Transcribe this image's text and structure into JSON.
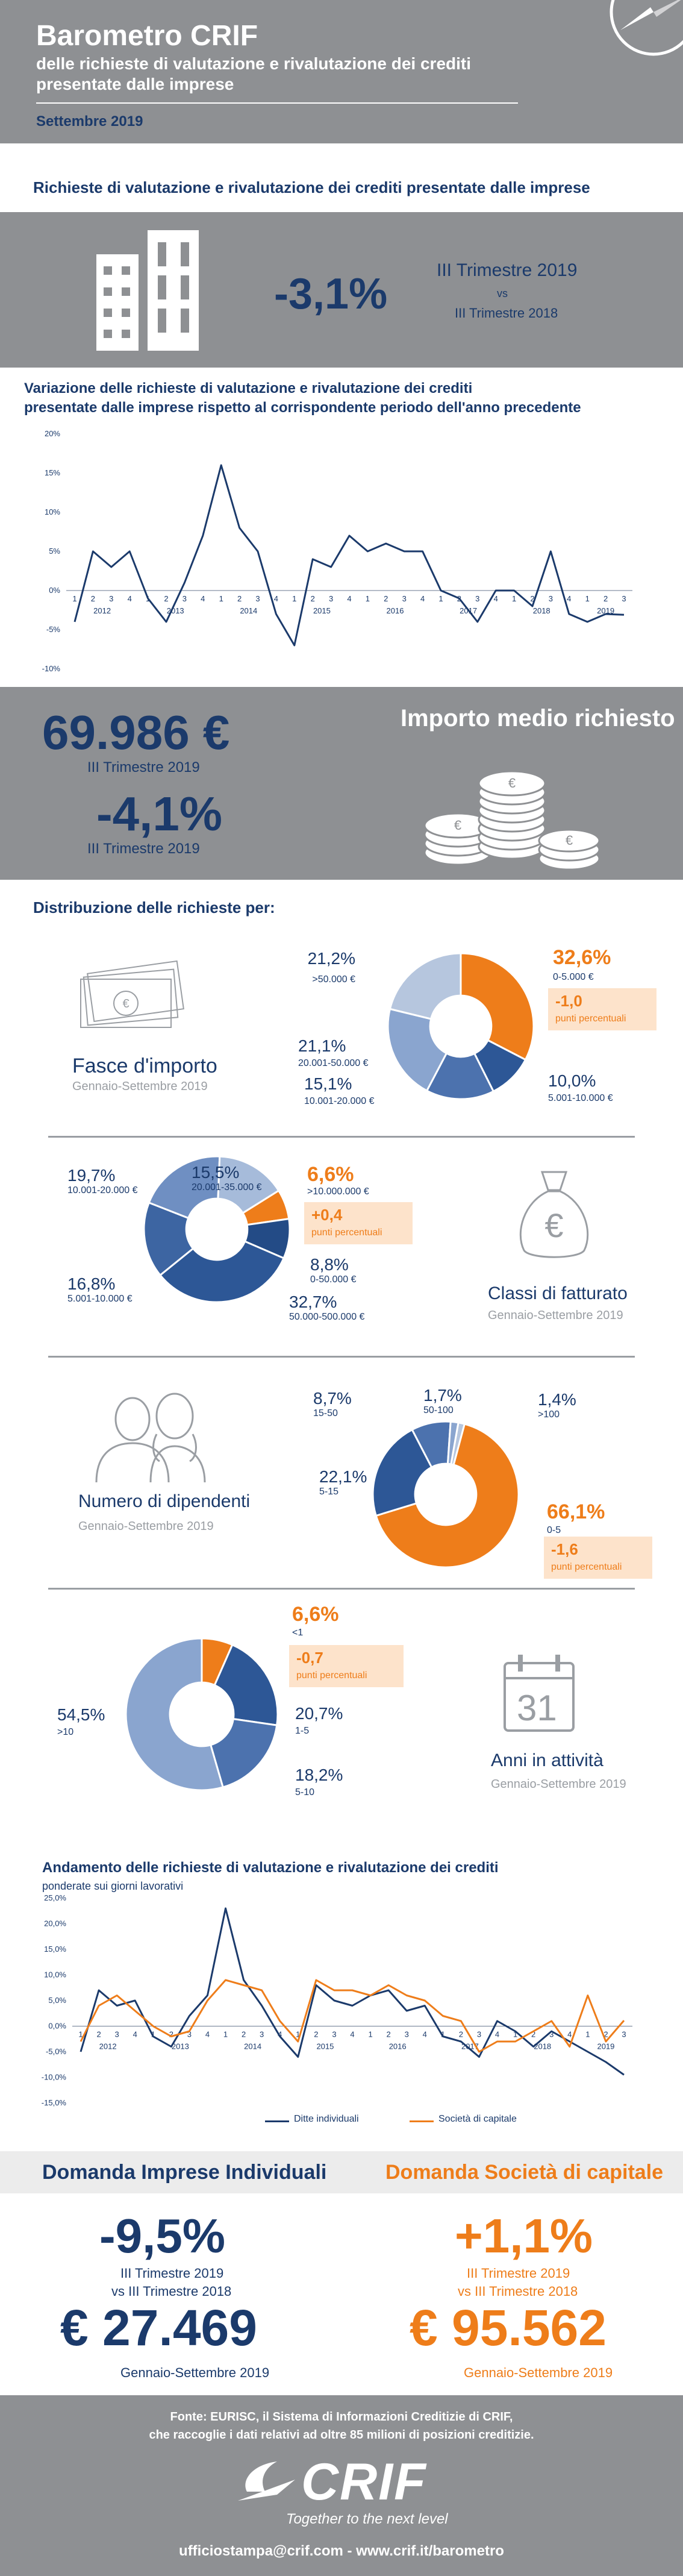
{
  "header": {
    "title": "Barometro CRIF",
    "subtitle_line1": "delle richieste di valutazione e rivalutazione dei crediti",
    "subtitle_line2": "presentate dalle imprese",
    "date": "Settembre 2019"
  },
  "section1": {
    "title": "Richieste di valutazione e rivalutazione dei crediti presentate dalle imprese",
    "value": "-3,1%",
    "period_a": "III Trimestre 2019",
    "vs": "vs",
    "period_b": "III Trimestre 2018"
  },
  "chart1": {
    "title_line1": "Variazione delle richieste di valutazione e rivalutazione dei crediti",
    "title_line2": "presentate dalle imprese rispetto al corrispondente periodo dell'anno precedente"
  },
  "chart_data": [
    {
      "type": "line",
      "title": "Variazione delle richieste di valutazione e rivalutazione dei crediti presentate dalle imprese rispetto al corrispondente periodo dell'anno precedente",
      "x": [
        "1",
        "2",
        "3",
        "4",
        "1",
        "2",
        "3",
        "4",
        "1",
        "2",
        "3",
        "4",
        "1",
        "2",
        "3",
        "4",
        "1",
        "2",
        "3",
        "4",
        "1",
        "2",
        "3",
        "4",
        "1",
        "2",
        "3",
        "4",
        "1",
        "2",
        "3"
      ],
      "year_labels": [
        "2012",
        "2013",
        "2014",
        "2015",
        "2016",
        "2017",
        "2018",
        "2019"
      ],
      "ylim": [
        -10,
        20
      ],
      "yticks": [
        "-10%",
        "-5%",
        "0%",
        "5%",
        "10%",
        "15%",
        "20%"
      ],
      "series": [
        {
          "values": [
            -4,
            5,
            3,
            5,
            -1,
            -4,
            1,
            7,
            16,
            8,
            5,
            -3,
            -7,
            4,
            3,
            7,
            5,
            6,
            5,
            5,
            0,
            -1,
            -4,
            0,
            0,
            -2,
            5,
            -3,
            -4,
            -3,
            -3.1
          ]
        }
      ],
      "grid": false
    },
    {
      "type": "line",
      "title": "Andamento delle richieste di valutazione e rivalutazione dei crediti ponderate sui giorni lavorativi",
      "x": [
        "1",
        "2",
        "3",
        "4",
        "1",
        "2",
        "3",
        "4",
        "1",
        "2",
        "3",
        "4",
        "1",
        "2",
        "3",
        "4",
        "1",
        "2",
        "3",
        "4",
        "1",
        "2",
        "3",
        "4",
        "1",
        "2",
        "3",
        "4",
        "1",
        "2",
        "3"
      ],
      "year_labels": [
        "2012",
        "2013",
        "2014",
        "2015",
        "2016",
        "2017",
        "2018",
        "2019"
      ],
      "ylim": [
        -15,
        25
      ],
      "yticks": [
        "-15,0%",
        "-10,0%",
        "-5,0%",
        "0,0%",
        "5,0%",
        "10,0%",
        "15,0%",
        "20,0%",
        "25,0%"
      ],
      "series": [
        {
          "name": "Ditte individuali",
          "color": "#1b3a6b",
          "values": [
            -5,
            7,
            4,
            5,
            -2,
            -4,
            2,
            6,
            23,
            9,
            4,
            -2,
            -6,
            8,
            5,
            4,
            6,
            7,
            3,
            4,
            -2,
            -3,
            -6,
            1,
            -1,
            -4,
            -1,
            -3,
            -5,
            -7,
            -9.5
          ]
        },
        {
          "name": "Società di capitale",
          "color": "#ee7d1a",
          "values": [
            -3,
            4,
            6,
            3,
            0,
            -2,
            -1,
            5,
            9,
            8,
            7,
            1,
            -3,
            9,
            7,
            7,
            6,
            8,
            6,
            5,
            2,
            1,
            -5,
            -3,
            -3,
            -1,
            1,
            -4,
            6,
            -3,
            1.1
          ]
        }
      ],
      "grid": false
    },
    {
      "type": "pie",
      "title": "Fasce d'importo",
      "slices": [
        {
          "label": "0-5.000 €",
          "value": 32.6,
          "color": "#ee7d1a"
        },
        {
          "label": "5.001-10.000 €",
          "value": 10.0,
          "color": "#2d5796"
        },
        {
          "label": "10.001-20.000 €",
          "value": 15.1,
          "color": "#4c72ae"
        },
        {
          "label": "20.001-50.000 €",
          "value": 21.1,
          "color": "#8aa5cf"
        },
        {
          "label": ">50.000 €",
          "value": 21.2,
          "color": "#b6c6de"
        }
      ]
    },
    {
      "type": "pie",
      "title": "Classi di fatturato",
      "slices": [
        {
          "label": ">10.000.000 €",
          "value": 6.6,
          "color": "#ee7d1a"
        },
        {
          "label": "0-50.000 €",
          "value": 8.8,
          "color": "#234b86"
        },
        {
          "label": "50.000-500.000 €",
          "value": 32.7,
          "color": "#2d5796"
        },
        {
          "label": "5.001-10.000 €",
          "value": 16.8,
          "color": "#3d65a2"
        },
        {
          "label": "10.001-20.000 €",
          "value": 19.7,
          "color": "#6f8fc2"
        },
        {
          "label": "20.001-35.000 €",
          "value": 15.5,
          "color": "#a6bbda"
        }
      ]
    },
    {
      "type": "pie",
      "title": "Numero di dipendenti",
      "slices": [
        {
          "label": ">100",
          "value": 1.4,
          "color": "#b6c6de"
        },
        {
          "label": "0-5",
          "value": 66.1,
          "color": "#ee7d1a"
        },
        {
          "label": "5-15",
          "value": 22.1,
          "color": "#2d5796"
        },
        {
          "label": "15-50",
          "value": 8.7,
          "color": "#4c72ae"
        },
        {
          "label": "50-100",
          "value": 1.7,
          "color": "#8aa5cf"
        }
      ]
    },
    {
      "type": "pie",
      "title": "Anni in attività",
      "slices": [
        {
          "label": "<1",
          "value": 6.6,
          "color": "#ee7d1a"
        },
        {
          "label": "1-5",
          "value": 20.7,
          "color": "#2d5796"
        },
        {
          "label": "5-10",
          "value": 18.2,
          "color": "#4c72ae"
        },
        {
          "label": ">10",
          "value": 54.5,
          "color": "#8aa5cf"
        }
      ]
    }
  ],
  "importo": {
    "value": "69.986 €",
    "period": "III Trimestre 2019",
    "title": "Importo medio richiesto",
    "change": "-4,1%",
    "change_period": "III Trimestre 2019"
  },
  "distribuzione": {
    "title": "Distribuzione delle richieste per:"
  },
  "fasce": {
    "title": "Fasce d'importo",
    "subtitle": "Gennaio-Settembre 2019",
    "labels": [
      {
        "pct": "21,2%",
        "range": ">50.000 €"
      },
      {
        "pct": "32,6%",
        "range": "0-5.000 €"
      },
      {
        "pct": "21,1%",
        "range": "20.001-50.000 €"
      },
      {
        "pct": "15,1%",
        "range": "10.001-20.000 €"
      },
      {
        "pct": "10,0%",
        "range": "5.001-10.000 €"
      }
    ],
    "delta": "-1,0",
    "delta_unit": "punti percentuali"
  },
  "fatturato": {
    "title": "Classi di fatturato",
    "subtitle": "Gennaio-Settembre 2019",
    "labels": [
      {
        "pct": "19,7%",
        "range": "10.001-20.000 €"
      },
      {
        "pct": "15,5%",
        "range": "20.001-35.000 €"
      },
      {
        "pct": "6,6%",
        "range": ">10.000.000 €"
      },
      {
        "pct": "8,8%",
        "range": "0-50.000 €"
      },
      {
        "pct": "16,8%",
        "range": "5.001-10.000 €"
      },
      {
        "pct": "32,7%",
        "range": "50.000-500.000 €"
      }
    ],
    "delta": "+0,4",
    "delta_unit": "punti percentuali"
  },
  "dipendenti": {
    "title": "Numero di dipendenti",
    "subtitle": "Gennaio-Settembre 2019",
    "labels": [
      {
        "pct": "8,7%",
        "range": "15-50"
      },
      {
        "pct": "1,7%",
        "range": "50-100"
      },
      {
        "pct": "1,4%",
        "range": ">100"
      },
      {
        "pct": "22,1%",
        "range": "5-15"
      },
      {
        "pct": "66,1%",
        "range": "0-5"
      }
    ],
    "delta": "-1,6",
    "delta_unit": "punti percentuali"
  },
  "anni": {
    "title": "Anni in attività",
    "subtitle": "Gennaio-Settembre 2019",
    "calendar_number": "31",
    "labels": [
      {
        "pct": "6,6%",
        "range": "<1"
      },
      {
        "pct": "54,5%",
        "range": ">10"
      },
      {
        "pct": "20,7%",
        "range": "1-5"
      },
      {
        "pct": "18,2%",
        "range": "5-10"
      }
    ],
    "delta": "-0,7",
    "delta_unit": "punti percentuali"
  },
  "chart2": {
    "title_line1": "Andamento delle richieste di valutazione e rivalutazione dei crediti",
    "title_line2": "ponderate sui giorni lavorativi",
    "legend_a": "Ditte individuali",
    "legend_b": "Società di capitale"
  },
  "domanda": {
    "left_title": "Domanda Imprese Individuali",
    "left_value": "-9,5%",
    "left_period1": "III Trimestre 2019",
    "left_period2": "vs III Trimestre 2018",
    "left_amount": "€ 27.469",
    "left_amount_period": "Gennaio-Settembre 2019",
    "right_title": "Domanda Società di capitale",
    "right_value": "+1,1%",
    "right_period1": "III Trimestre 2019",
    "right_period2": "vs III Trimestre 2018",
    "right_amount": "€ 95.562",
    "right_amount_period": "Gennaio-Settembre 2019"
  },
  "footer": {
    "source_line1": "Fonte: EURISC, il Sistema di Informazioni Creditizie di CRIF,",
    "source_line2": "che raccoglie i dati relativi ad oltre 85 milioni di posizioni creditizie.",
    "logo_text": "CRIF",
    "tagline": "Together to the next level",
    "contact": "ufficiostampa@crif.com - www.crif.it/barometro"
  },
  "colors": {
    "navy": "#1b3a6b",
    "orange": "#ee7d1a",
    "grey": "#8e9093"
  }
}
